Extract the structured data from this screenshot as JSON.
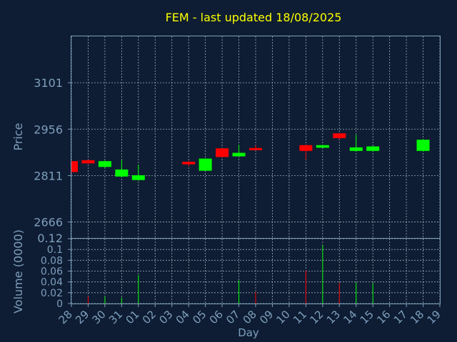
{
  "chart_data": {
    "type": "candlestick",
    "title": "FEM - last updated 18/08/2025",
    "xlabel": "Day",
    "ylabel_price": "Price",
    "ylabel_volume": "Volume (0000)",
    "x_ticks": [
      "28",
      "29",
      "30",
      "31",
      "01",
      "02",
      "03",
      "04",
      "05",
      "06",
      "07",
      "08",
      "09",
      "10",
      "11",
      "12",
      "13",
      "14",
      "15",
      "16",
      "17",
      "18",
      "19"
    ],
    "price_ticks": [
      2666,
      2811,
      2956,
      3101
    ],
    "price_ylim": [
      2616,
      3246
    ],
    "volume_ticks": [
      "0",
      "0.02",
      "0.04",
      "0.06",
      "0.08",
      "0.1",
      "0.12"
    ],
    "volume_ylim": [
      0,
      0.12
    ],
    "grid": true,
    "colors": {
      "up": "#00ff00",
      "down": "#ff0000",
      "background": "#0e1d33",
      "axis": "#7e9fbd",
      "title": "#ffff00"
    },
    "candles": [
      {
        "day": "28",
        "open": 2856,
        "high": 2856,
        "low": 2820,
        "close": 2822
      },
      {
        "day": "29",
        "open": 2859,
        "high": 2861,
        "low": 2848,
        "close": 2849
      },
      {
        "day": "30",
        "open": 2838,
        "high": 2858,
        "low": 2836,
        "close": 2856
      },
      {
        "day": "31",
        "open": 2808,
        "high": 2860,
        "low": 2806,
        "close": 2830
      },
      {
        "day": "01",
        "open": 2797,
        "high": 2844,
        "low": 2795,
        "close": 2812
      },
      {
        "day": "04",
        "open": 2854,
        "high": 2857,
        "low": 2840,
        "close": 2846
      },
      {
        "day": "05",
        "open": 2826,
        "high": 2865,
        "low": 2825,
        "close": 2864
      },
      {
        "day": "06",
        "open": 2896,
        "high": 2896,
        "low": 2868,
        "close": 2869
      },
      {
        "day": "07",
        "open": 2871,
        "high": 2907,
        "low": 2870,
        "close": 2882
      },
      {
        "day": "08",
        "open": 2897,
        "high": 2905,
        "low": 2892,
        "close": 2892
      },
      {
        "day": "11",
        "open": 2906,
        "high": 2906,
        "low": 2861,
        "close": 2888
      },
      {
        "day": "12",
        "open": 2898,
        "high": 2907,
        "low": 2898,
        "close": 2906
      },
      {
        "day": "13",
        "open": 2943,
        "high": 2944,
        "low": 2924,
        "close": 2928
      },
      {
        "day": "14",
        "open": 2888,
        "high": 2938,
        "low": 2886,
        "close": 2899
      },
      {
        "day": "15",
        "open": 2888,
        "high": 2903,
        "low": 2887,
        "close": 2902
      },
      {
        "day": "18",
        "open": 2888,
        "high": 2925,
        "low": 2887,
        "close": 2923
      }
    ],
    "volumes": [
      {
        "day": "29",
        "value": 0.013,
        "dir": "down"
      },
      {
        "day": "30",
        "value": 0.013,
        "dir": "up"
      },
      {
        "day": "31",
        "value": 0.011,
        "dir": "up"
      },
      {
        "day": "01",
        "value": 0.053,
        "dir": "up"
      },
      {
        "day": "07",
        "value": 0.043,
        "dir": "up"
      },
      {
        "day": "08",
        "value": 0.021,
        "dir": "down"
      },
      {
        "day": "11",
        "value": 0.061,
        "dir": "down"
      },
      {
        "day": "12",
        "value": 0.108,
        "dir": "up"
      },
      {
        "day": "13",
        "value": 0.038,
        "dir": "down"
      },
      {
        "day": "14",
        "value": 0.039,
        "dir": "up"
      },
      {
        "day": "15",
        "value": 0.038,
        "dir": "up"
      }
    ]
  }
}
